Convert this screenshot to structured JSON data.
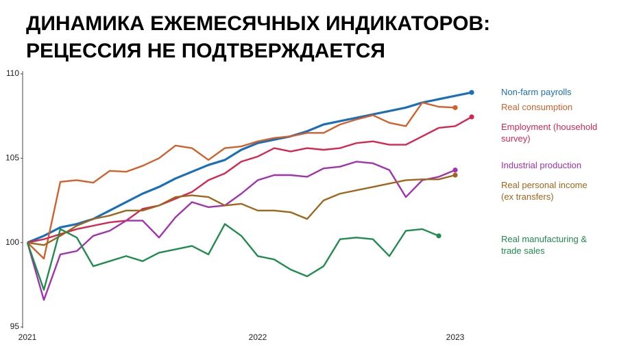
{
  "chart_data": {
    "type": "line",
    "title": [
      "ДИНАМИКА ЕЖЕМЕСЯЧНЫХ ИНДИКАТОРОВ:",
      "РЕЦЕССИЯ НЕ ПОДТВЕРЖДАЕТСЯ"
    ],
    "categories": [
      "2021",
      null,
      null,
      null,
      null,
      null,
      null,
      null,
      null,
      null,
      null,
      null,
      null,
      null,
      "2022",
      null,
      null,
      null,
      null,
      null,
      null,
      null,
      null,
      null,
      null,
      null,
      "2023",
      null
    ],
    "ylim": [
      95,
      110
    ],
    "yticks": [
      95,
      100,
      105,
      110
    ],
    "grid": false,
    "series": [
      {
        "name": "Non-farm payrolls",
        "color": "#1a6fb8",
        "values": [
          100,
          100.4,
          100.9,
          101.1,
          101.4,
          101.9,
          102.4,
          102.9,
          103.3,
          103.8,
          104.2,
          104.6,
          104.9,
          105.5,
          105.9,
          106.1,
          106.3,
          106.6,
          107.0,
          107.2,
          107.4,
          107.6,
          107.8,
          108.0,
          108.3,
          108.5,
          108.7,
          108.9
        ]
      },
      {
        "name": "Real consumption",
        "color": "#d35f2a",
        "values": [
          100,
          99.05,
          103.6,
          103.7,
          103.55,
          104.25,
          104.2,
          104.55,
          105.0,
          105.75,
          105.6,
          104.9,
          105.6,
          105.7,
          106.0,
          106.2,
          106.3,
          106.5,
          106.5,
          107.0,
          107.3,
          107.55,
          107.1,
          106.9,
          108.3,
          108.05,
          108.0,
          null
        ]
      },
      {
        "name": "Employment (household survey)",
        "color": "#d6264f",
        "values": [
          100,
          100.2,
          100.5,
          100.8,
          101.0,
          101.2,
          101.3,
          102.0,
          102.2,
          102.6,
          103.0,
          103.7,
          104.1,
          104.8,
          105.1,
          105.6,
          105.4,
          105.6,
          105.5,
          105.6,
          105.9,
          106.0,
          105.8,
          105.8,
          106.3,
          106.8,
          106.9,
          107.45
        ]
      },
      {
        "name": "Industrial production",
        "color": "#a330b0",
        "values": [
          100,
          96.6,
          99.3,
          99.5,
          100.4,
          100.7,
          101.3,
          101.3,
          100.3,
          101.5,
          102.4,
          102.1,
          102.2,
          102.9,
          103.7,
          104.0,
          104.0,
          103.9,
          104.4,
          104.5,
          104.8,
          104.7,
          104.3,
          102.7,
          103.7,
          103.9,
          104.3,
          null
        ]
      },
      {
        "name": "Real personal income (ex transfers)",
        "color": "#a0651a",
        "values": [
          100,
          99.85,
          100.4,
          101.0,
          101.4,
          101.6,
          101.9,
          101.9,
          102.2,
          102.7,
          102.8,
          102.7,
          102.2,
          102.3,
          101.9,
          101.9,
          101.8,
          101.4,
          102.5,
          102.9,
          103.1,
          103.3,
          103.5,
          103.7,
          103.75,
          103.75,
          104.0,
          null
        ]
      },
      {
        "name": "Real manufacturing & trade sales",
        "color": "#1e8c4c",
        "values": [
          100,
          97.2,
          100.8,
          100.3,
          98.6,
          98.9,
          99.2,
          98.9,
          99.4,
          99.6,
          99.8,
          99.3,
          101.1,
          100.4,
          99.2,
          99.0,
          98.4,
          98.0,
          98.6,
          100.2,
          100.3,
          100.2,
          99.2,
          100.7,
          100.8,
          100.4,
          null,
          null
        ]
      }
    ]
  }
}
